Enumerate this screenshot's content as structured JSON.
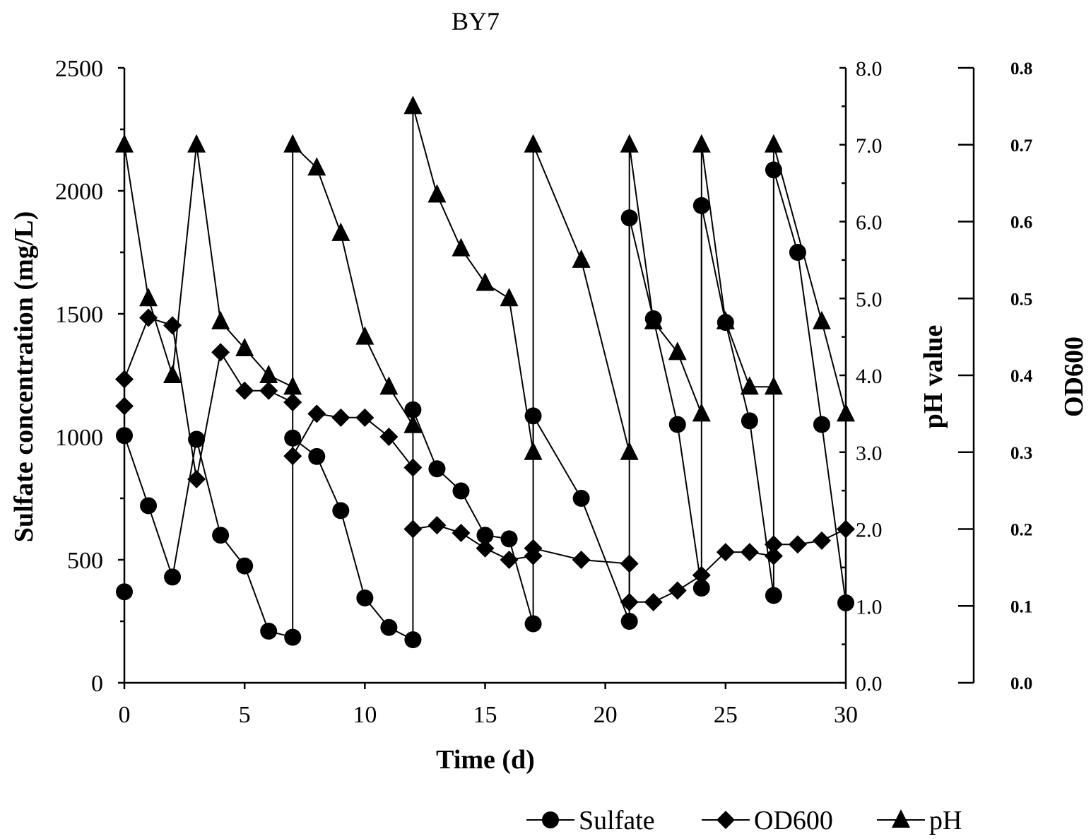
{
  "chart_data": {
    "type": "line",
    "title": "BY7",
    "xlabel": "Time (d)",
    "ylabel_left": "Sulfate concentration (mg/L)",
    "ylabel_right": "pH value",
    "ylabel_far_right": "OD600",
    "xlim": [
      0,
      30
    ],
    "xticks": [
      "0",
      "5",
      "10",
      "15",
      "20",
      "25",
      "30"
    ],
    "ylim_left": [
      0,
      2500
    ],
    "yticks_left": [
      "0",
      "500",
      "1000",
      "1500",
      "2000",
      "2500"
    ],
    "ylim_right": [
      0,
      8
    ],
    "yticks_right": [
      "0.0",
      "1.0",
      "2.0",
      "3.0",
      "4.0",
      "5.0",
      "6.0",
      "7.0",
      "8.0"
    ],
    "ylim_far_right": [
      0,
      0.8
    ],
    "yticks_far_right": [
      "0.0",
      "0.1",
      "0.2",
      "0.3",
      "0.4",
      "0.5",
      "0.6",
      "0.7",
      "0.8"
    ],
    "grid": false,
    "legend_position": "bottom-right",
    "series": [
      {
        "name": "Sulfate",
        "marker": "circle",
        "axis": "left",
        "x": [
          0,
          0,
          1,
          2,
          3,
          4,
          5,
          6,
          7,
          7,
          8,
          9,
          10,
          11,
          12,
          12,
          13,
          14,
          15,
          16,
          17,
          17,
          19,
          21,
          21,
          22,
          23,
          24,
          24,
          25,
          26,
          27,
          27,
          28,
          29,
          30
        ],
        "y": [
          370,
          1005,
          720,
          430,
          990,
          600,
          475,
          210,
          185,
          995,
          920,
          700,
          345,
          225,
          175,
          1110,
          870,
          780,
          600,
          585,
          240,
          1085,
          750,
          250,
          1890,
          1480,
          1050,
          385,
          1940,
          1465,
          1065,
          355,
          2085,
          1750,
          1050,
          325
        ]
      },
      {
        "name": "OD600",
        "marker": "diamond",
        "axis": "far_right",
        "x": [
          0,
          0,
          1,
          2,
          3,
          4,
          5,
          6,
          7,
          7,
          8,
          9,
          10,
          11,
          12,
          12,
          13,
          14,
          15,
          16,
          17,
          17,
          19,
          21,
          21,
          22,
          23,
          24,
          25,
          26,
          27,
          27,
          28,
          29,
          30
        ],
        "y": [
          0.36,
          0.395,
          0.475,
          0.465,
          0.265,
          0.43,
          0.38,
          0.38,
          0.365,
          0.295,
          0.35,
          0.345,
          0.345,
          0.32,
          0.28,
          0.2,
          0.205,
          0.195,
          0.175,
          0.16,
          0.165,
          0.175,
          0.16,
          0.155,
          0.105,
          0.105,
          0.12,
          0.14,
          0.17,
          0.17,
          0.165,
          0.18,
          0.18,
          0.185,
          0.2
        ]
      },
      {
        "name": "pH",
        "marker": "triangle",
        "axis": "right",
        "x": [
          0,
          1,
          2,
          3,
          4,
          5,
          6,
          7,
          7,
          8,
          9,
          10,
          11,
          12,
          12,
          13,
          14,
          15,
          16,
          17,
          17,
          19,
          21,
          21,
          22,
          23,
          24,
          24,
          25,
          26,
          27,
          27,
          29,
          30
        ],
        "y": [
          7.0,
          5.0,
          4.0,
          7.0,
          4.7,
          4.35,
          4.0,
          3.85,
          7.0,
          6.7,
          5.85,
          4.5,
          3.85,
          3.35,
          7.5,
          6.35,
          5.65,
          5.2,
          5.0,
          3.0,
          7.0,
          5.5,
          3.0,
          7.0,
          4.7,
          4.3,
          3.5,
          7.0,
          4.7,
          3.85,
          3.85,
          7.0,
          4.7,
          3.5
        ]
      }
    ]
  }
}
